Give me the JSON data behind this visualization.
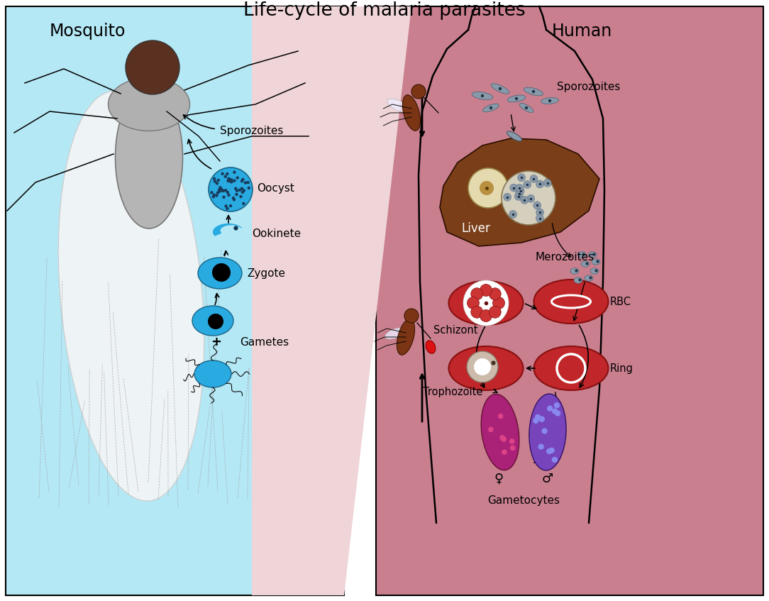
{
  "title": "Life-cycle of malaria parasites",
  "title_fontsize": 19,
  "bg_color": "#ffffff",
  "mosquito_bg": "#b5e8f5",
  "human_bg": "#c97f8e",
  "overlap_bg": "#f0d5d8",
  "labels": {
    "mosquito": "Mosquito",
    "human": "Human",
    "sporozoites_mosq": "Sporozoites",
    "oocyst": "Oocyst",
    "ookinete": "Ookinete",
    "zygote": "Zygote",
    "gametes": "Gametes",
    "sporozoites_human": "Sporozoites",
    "liver": "Liver",
    "merozoites": "Merozoites",
    "schizont": "Schizont",
    "rbc": "RBC",
    "trophozoite": "Trophozoite",
    "ring": "Ring",
    "gametocytes": "Gametocytes",
    "female_symbol": "♀",
    "male_symbol": "♂"
  },
  "colors": {
    "cyan_cell": "#29aae1",
    "dark_dot": "#111111",
    "gray_body": "#aaaaaa",
    "brown_head": "#5a3020",
    "wing_color": "#f0f0f0",
    "liver_color": "#7a3e18",
    "rbc_red": "#c0262a",
    "oocyst_cyan": "#29aae1",
    "dark_oocyst_dots": "#1a3a5a",
    "white_ring": "#ffffff",
    "pink_female": "#aa2277",
    "purple_male": "#7744bb",
    "arrow_color": "#111111"
  }
}
